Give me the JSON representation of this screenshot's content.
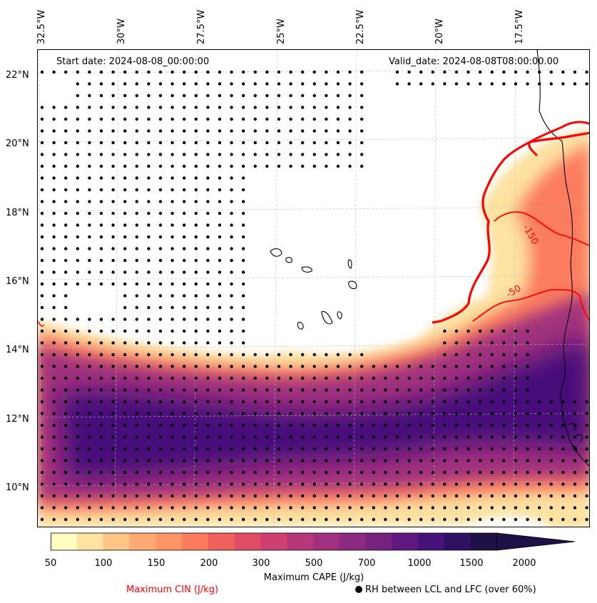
{
  "header": {
    "start_date": "Start date: 2024-08-08_00:00:00",
    "valid_date": "Valid_date: 2024-08-08T08:00:00.00"
  },
  "map": {
    "longitude_labels": [
      "32.5°W",
      "30°W",
      "27.5°W",
      "25°W",
      "22.5°W",
      "20°W",
      "17.5°W"
    ],
    "latitude_labels": [
      "22°N",
      "20°N",
      "18°N",
      "16°N",
      "14°N",
      "12°N",
      "10°N"
    ],
    "lon_range_deg": [
      -32.5,
      -14.5
    ],
    "lat_range_deg": [
      8.8,
      22.7
    ],
    "cin_contour_labels": [
      "-150",
      "-50"
    ]
  },
  "colorbar": {
    "title": "Maximum CAPE (J/kg)",
    "tick_labels": [
      "50",
      "100",
      "150",
      "200",
      "300",
      "500",
      "700",
      "1000",
      "1500",
      "2000"
    ],
    "colors": [
      "#fcfdbf",
      "#fde2a1",
      "#fec486",
      "#feaa74",
      "#fd9567",
      "#fb7b5e",
      "#f0605d",
      "#e24d66",
      "#cd4071",
      "#b73779",
      "#a1307e",
      "#8c2981",
      "#75237f",
      "#5f187f",
      "#47117a",
      "#2f1163",
      "#1f1046"
    ]
  },
  "legend": {
    "cin_label": "Maximum CIN (J/kg)",
    "rh_label": "RH between LCL and LFC (over 60%)"
  },
  "colors": {
    "cin_contour": "#ff0000",
    "rh_dot": "#000000",
    "coastline": "#000000"
  }
}
